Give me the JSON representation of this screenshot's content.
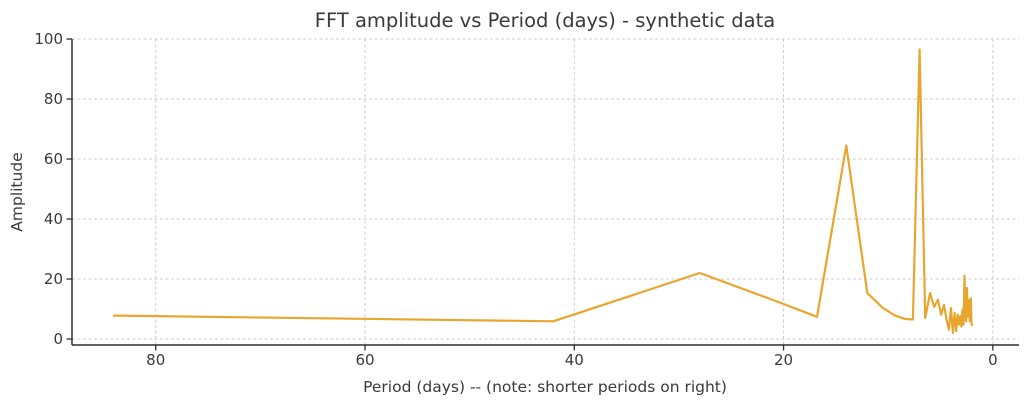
{
  "chart_data": {
    "type": "line",
    "title": "FFT amplitude vs Period (days) - synthetic data",
    "xlabel": "Period (days) -- (note: shorter periods on right)",
    "ylabel": "Amplitude",
    "x_axis_reversed": true,
    "xlim": [
      88.0,
      -2.5
    ],
    "ylim": [
      -2,
      100
    ],
    "xticks": [
      80,
      60,
      40,
      20,
      0
    ],
    "yticks": [
      0,
      20,
      40,
      60,
      80,
      100
    ],
    "grid": {
      "visible": true,
      "style": "dashed",
      "color": "#cccccc"
    },
    "legend": "none",
    "colors": {
      "line": "#E8A62F",
      "axis": "#2e2e2e",
      "text": "#3a3a3a",
      "background": "#ffffff"
    },
    "series": [
      {
        "name": "FFT amplitude",
        "x": [
          84,
          42,
          28,
          21,
          16.8,
          14,
          12,
          10.5,
          9.33,
          8.4,
          7.64,
          7.0,
          6.46,
          6.0,
          5.6,
          5.25,
          4.94,
          4.67,
          4.42,
          4.2,
          4.0,
          3.82,
          3.65,
          3.5,
          3.36,
          3.23,
          3.11,
          3.0,
          2.9,
          2.8,
          2.71,
          2.62,
          2.55,
          2.47,
          2.4,
          2.33,
          2.27,
          2.21,
          2.15,
          2.1,
          2.05,
          2.0
        ],
        "y": [
          7.8,
          5.9,
          22.0,
          13.0,
          7.4,
          64.5,
          15.3,
          10.3,
          7.8,
          6.7,
          6.5,
          96.5,
          7.0,
          15.3,
          10.7,
          13.1,
          8.1,
          11.4,
          6.4,
          3.1,
          10.3,
          2.0,
          8.7,
          2.6,
          8.1,
          4.8,
          7.6,
          4.2,
          9.8,
          4.8,
          21.1,
          8.0,
          5.9,
          17.0,
          7.5,
          9.2,
          13.1,
          6.0,
          11.0,
          13.5,
          5.3,
          4.7
        ]
      }
    ]
  }
}
